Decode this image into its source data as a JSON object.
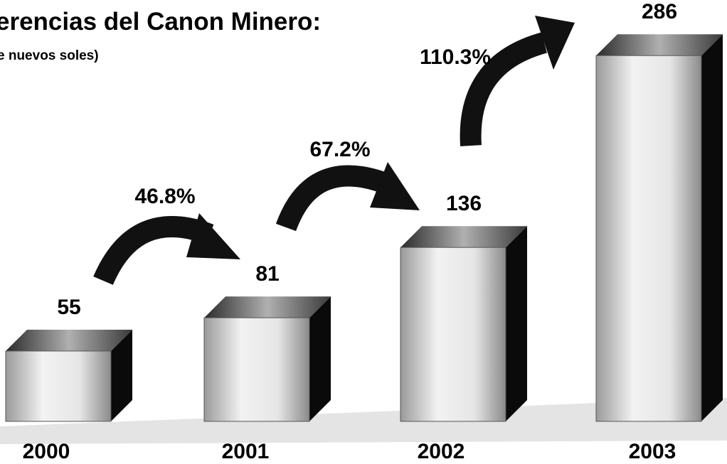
{
  "chart_data": {
    "type": "bar3d",
    "title": "erencias del Canon Minero:",
    "subtitle": "e nuevos soles)",
    "categories": [
      "2000",
      "2001",
      "2002",
      "2003"
    ],
    "values": [
      55,
      81,
      136,
      286
    ],
    "growth_labels": [
      "46.8%",
      "67.2%",
      "110.3%"
    ],
    "color": "#e8e8e8"
  }
}
